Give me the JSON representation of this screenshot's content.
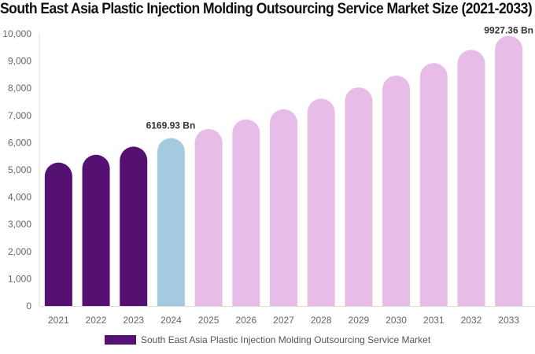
{
  "chart_data": {
    "type": "bar",
    "title": "South East Asia Plastic Injection Molding Outsourcing Service Market Size (2021-2033)",
    "xlabel": "",
    "ylabel": "",
    "ylim": [
      0,
      10000
    ],
    "yticks": [
      0,
      1000,
      2000,
      3000,
      4000,
      5000,
      6000,
      7000,
      8000,
      9000,
      10000
    ],
    "ytick_labels": [
      "0",
      "1,000",
      "2,000",
      "3,000",
      "4,000",
      "5,000",
      "6,000",
      "7,000",
      "8,000",
      "9,000",
      "10,000"
    ],
    "categories": [
      "2021",
      "2022",
      "2023",
      "2024",
      "2025",
      "2026",
      "2027",
      "2028",
      "2029",
      "2030",
      "2031",
      "2032",
      "2033"
    ],
    "series": [
      {
        "name": "South East Asia Plastic Injection Molding Outsourcing Service Market",
        "values": [
          5270,
          5555,
          5855,
          6169.93,
          6504,
          6856,
          7228,
          7619,
          8032,
          8467,
          8926,
          9410,
          9927.36
        ]
      }
    ],
    "bar_colors": {
      "historical": "#541171",
      "base_year": "#a3cadf",
      "forecast": "#e7bde8"
    },
    "annotations": [
      {
        "category": "2024",
        "text": "6169.93 Bn"
      },
      {
        "category": "2033",
        "text": "9927.36 Bn"
      }
    ],
    "legend": {
      "position": "bottom",
      "label": "South East Asia Plastic Injection Molding Outsourcing Service Market"
    },
    "grid": false
  }
}
